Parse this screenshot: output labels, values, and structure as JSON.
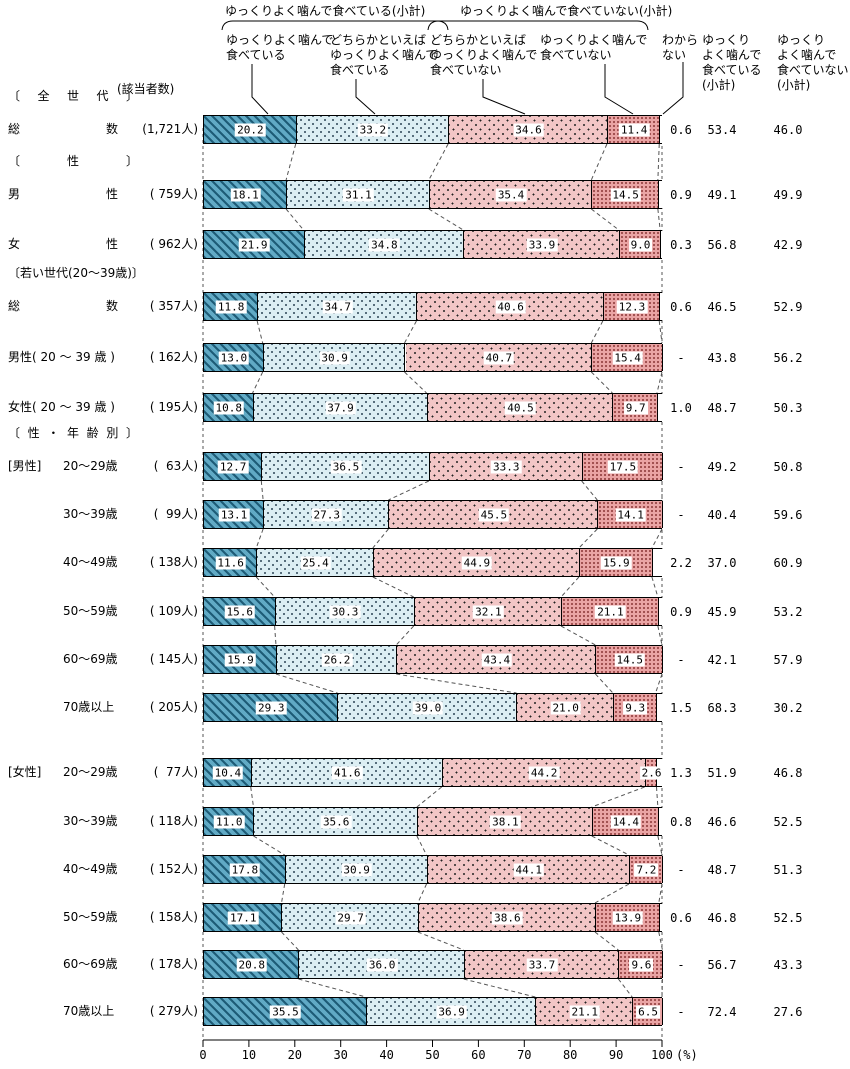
{
  "legend": {
    "group_yes": "ゆっくりよく噛んで食べている(小計)",
    "group_no": "ゆっくりよく噛んで食べていない(小計)",
    "seg1": "ゆっくりよく噛んで\n食べている",
    "seg2": "どちらかといえば\nゆっくりよく噛んで\n食べている",
    "seg3": "どちらかといえば\nゆっくりよく噛んで\n食べていない",
    "seg4": "ゆっくりよく噛んで\n食べていない",
    "dk": "わから\nない",
    "col_yes": "ゆっくり\nよく噛んで\n食べている\n(小計)",
    "col_no": "ゆっくり\nよく噛んで\n食べていない\n(小計)",
    "respondents": "(該当者数)"
  },
  "colors": {
    "seg1_base": "#61aac5",
    "seg1_stripe": "#1e5c77",
    "seg2_base": "#dceef3",
    "seg2_dot": "#2b4455",
    "seg3_base": "#f2c6c6",
    "seg3_dot": "#222222",
    "seg4_base": "#eaa4a4",
    "seg4_dot": "#a25151",
    "dk_base": "#ffffff",
    "border": "#000000"
  },
  "chart_data": {
    "type": "bar",
    "stacked": true,
    "orientation": "horizontal",
    "xlim": [
      0,
      100
    ],
    "x_ticks": [
      "0",
      "10",
      "20",
      "30",
      "40",
      "50",
      "60",
      "70",
      "80",
      "90",
      "100"
    ],
    "x_unit": "(%)",
    "series_labels": [
      "ゆっくりよく噛んで食べている",
      "どちらかといえばゆっくりよく噛んで食べている",
      "どちらかといえばゆっくりよく噛んで食べていない",
      "ゆっくりよく噛んで食べていない",
      "わからない"
    ],
    "subtotal_labels": [
      "ゆっくりよく噛んで食べている(小計)",
      "ゆっくりよく噛んで食べていない(小計)"
    ],
    "rows": [
      {
        "section": "〔全世代〕",
        "section_justify": true,
        "label": "総数",
        "justify": true,
        "n": "(1,721人)",
        "values": [
          "20.2",
          "33.2",
          "34.6",
          "11.4"
        ],
        "dk": "0.6",
        "sub_yes": "53.4",
        "sub_no": "46.0",
        "cluster": 0
      },
      {
        "section": "〔性〕",
        "section_justify": true,
        "label": "男性",
        "justify": true,
        "n": "( 759人)",
        "values": [
          "18.1",
          "31.1",
          "35.4",
          "14.5"
        ],
        "dk": "0.9",
        "sub_yes": "49.1",
        "sub_no": "49.9",
        "cluster": 0
      },
      {
        "label": "女性",
        "justify": true,
        "n": "( 962人)",
        "values": [
          "21.9",
          "34.8",
          "33.9",
          "9.0"
        ],
        "dk": "0.3",
        "sub_yes": "56.8",
        "sub_no": "42.9",
        "cluster": 0
      },
      {
        "section": "〔若い世代(20〜39歳)〕",
        "section_justify": false,
        "label": "総数",
        "justify": true,
        "n": "( 357人)",
        "values": [
          "11.8",
          "34.7",
          "40.6",
          "12.3"
        ],
        "dk": "0.6",
        "sub_yes": "46.5",
        "sub_no": "52.9",
        "cluster": 1
      },
      {
        "label": "男性( 20 〜 39 歳 )",
        "justify": false,
        "n": "( 162人)",
        "values": [
          "13.0",
          "30.9",
          "40.7",
          "15.4"
        ],
        "dk": "-",
        "sub_yes": "43.8",
        "sub_no": "56.2",
        "cluster": 1
      },
      {
        "label": "女性( 20 〜 39 歳 )",
        "justify": false,
        "n": "( 195人)",
        "values": [
          "10.8",
          "37.9",
          "40.5",
          "9.7"
        ],
        "dk": "1.0",
        "sub_yes": "48.7",
        "sub_no": "50.3",
        "cluster": 1
      },
      {
        "section": "〔性・年齢別〕",
        "section_justify": true,
        "group": "[男性]",
        "label": "20〜29歳",
        "age": true,
        "n": "(  63人)",
        "values": [
          "12.7",
          "36.5",
          "33.3",
          "17.5"
        ],
        "dk": "-",
        "sub_yes": "49.2",
        "sub_no": "50.8",
        "cluster": 2
      },
      {
        "label": "30〜39歳",
        "age": true,
        "n": "(  99人)",
        "values": [
          "13.1",
          "27.3",
          "45.5",
          "14.1"
        ],
        "dk": "-",
        "sub_yes": "40.4",
        "sub_no": "59.6",
        "cluster": 2
      },
      {
        "label": "40〜49歳",
        "age": true,
        "n": "( 138人)",
        "values": [
          "11.6",
          "25.4",
          "44.9",
          "15.9"
        ],
        "dk": "2.2",
        "sub_yes": "37.0",
        "sub_no": "60.9",
        "cluster": 2
      },
      {
        "label": "50〜59歳",
        "age": true,
        "n": "( 109人)",
        "values": [
          "15.6",
          "30.3",
          "32.1",
          "21.1"
        ],
        "dk": "0.9",
        "sub_yes": "45.9",
        "sub_no": "53.2",
        "cluster": 2
      },
      {
        "label": "60〜69歳",
        "age": true,
        "n": "( 145人)",
        "values": [
          "15.9",
          "26.2",
          "43.4",
          "14.5"
        ],
        "dk": "-",
        "sub_yes": "42.1",
        "sub_no": "57.9",
        "cluster": 2
      },
      {
        "label": "70歳以上",
        "age": true,
        "n": "( 205人)",
        "values": [
          "29.3",
          "39.0",
          "21.0",
          "9.3"
        ],
        "dk": "1.5",
        "sub_yes": "68.3",
        "sub_no": "30.2",
        "cluster": 2
      },
      {
        "group": "[女性]",
        "label": "20〜29歳",
        "age": true,
        "n": "(  77人)",
        "values": [
          "10.4",
          "41.6",
          "44.2",
          "2.6"
        ],
        "dk": "1.3",
        "sub_yes": "51.9",
        "sub_no": "46.8",
        "cluster": 3
      },
      {
        "label": "30〜39歳",
        "age": true,
        "n": "( 118人)",
        "values": [
          "11.0",
          "35.6",
          "38.1",
          "14.4"
        ],
        "dk": "0.8",
        "sub_yes": "46.6",
        "sub_no": "52.5",
        "cluster": 3
      },
      {
        "label": "40〜49歳",
        "age": true,
        "n": "( 152人)",
        "values": [
          "17.8",
          "30.9",
          "44.1",
          "7.2"
        ],
        "dk": "-",
        "sub_yes": "48.7",
        "sub_no": "51.3",
        "cluster": 3
      },
      {
        "label": "50〜59歳",
        "age": true,
        "n": "( 158人)",
        "values": [
          "17.1",
          "29.7",
          "38.6",
          "13.9"
        ],
        "dk": "0.6",
        "sub_yes": "46.8",
        "sub_no": "52.5",
        "cluster": 3
      },
      {
        "label": "60〜69歳",
        "age": true,
        "n": "( 178人)",
        "values": [
          "20.8",
          "36.0",
          "33.7",
          "9.6"
        ],
        "dk": "-",
        "sub_yes": "56.7",
        "sub_no": "43.3",
        "cluster": 3
      },
      {
        "label": "70歳以上",
        "age": true,
        "n": "( 279人)",
        "values": [
          "35.5",
          "36.9",
          "21.1",
          "6.5"
        ],
        "dk": "-",
        "sub_yes": "72.4",
        "sub_no": "27.6",
        "cluster": 3
      }
    ]
  }
}
